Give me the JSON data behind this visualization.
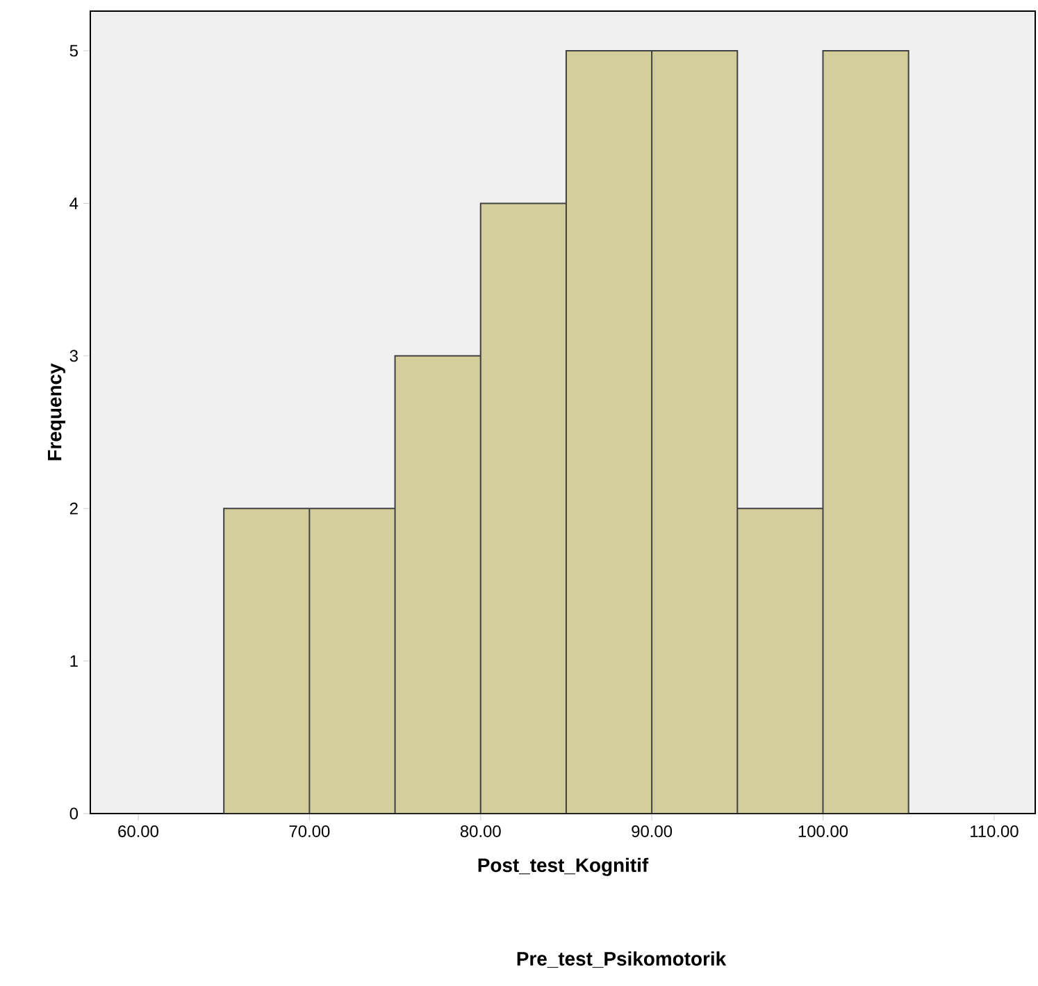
{
  "chart_data": {
    "type": "histogram",
    "xlabel": "Post_test_Kognitif",
    "ylabel": "Frequency",
    "annotations": [
      "Pre_test_Psikomotorik"
    ],
    "bins": [
      65,
      70,
      75,
      80,
      85,
      90,
      95,
      100,
      105
    ],
    "values": [
      2,
      2,
      3,
      4,
      5,
      5,
      2,
      5
    ],
    "color": "#d3ce9b",
    "xlim": [
      57.2,
      112.4
    ],
    "ylim": [
      0,
      5.26
    ],
    "xticks": [
      {
        "value": 60,
        "label": "60.00"
      },
      {
        "value": 70,
        "label": "70.00"
      },
      {
        "value": 80,
        "label": "80.00"
      },
      {
        "value": 90,
        "label": "90.00"
      },
      {
        "value": 100,
        "label": "100.00"
      },
      {
        "value": 110,
        "label": "110.00"
      }
    ],
    "yticks": [
      0,
      1,
      2,
      3,
      4,
      5
    ]
  }
}
